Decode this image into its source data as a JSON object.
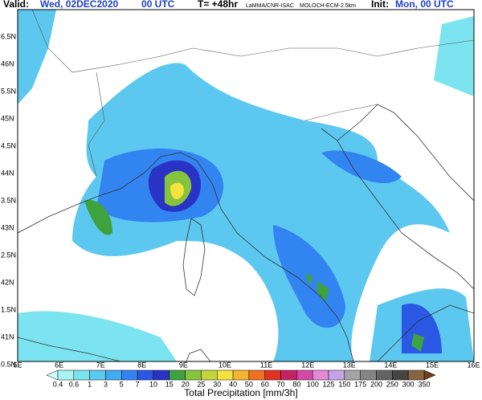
{
  "header": {
    "valid_label": "Valid:",
    "valid_day": "Wed, 02DEC2020",
    "valid_hour": "00 UTC",
    "lead": "T= +48hr",
    "source": "LaMMA/CNR-ISAC",
    "model": "MOLOCH-ECM-2.5km",
    "init_label": "Init:",
    "init_value": "Mon, 00 UTC"
  },
  "map": {
    "lat_labels": [
      "6.5N",
      "46N",
      "5.5N",
      "45N",
      "4.5N",
      "44N",
      "3.5N",
      "43N",
      "2.5N",
      "42N",
      "1.5N",
      "41N",
      "0.5N"
    ],
    "lon_labels": [
      "5E",
      "6E",
      "7E",
      "8E",
      "9E",
      "10E",
      "11E",
      "12E",
      "13E",
      "14E",
      "15E",
      "16E"
    ]
  },
  "colorbar": {
    "levels": [
      0.4,
      0.6,
      1,
      3,
      5,
      7,
      10,
      15,
      20,
      25,
      30,
      40,
      50,
      60,
      70,
      80,
      100,
      125,
      150,
      175,
      200,
      250,
      300,
      350
    ],
    "colors": [
      "#a8f4f4",
      "#7ce4f0",
      "#5ccaf0",
      "#42aaf0",
      "#3284f0",
      "#2a58e4",
      "#2a34c4",
      "#3ea23e",
      "#86c43e",
      "#c4d43e",
      "#f4e23e",
      "#f4b432",
      "#f07022",
      "#e03222",
      "#c42262",
      "#d448a8",
      "#e488d8",
      "#c4a4e4",
      "#a4a4a4",
      "#848484",
      "#646464",
      "#444444",
      "#866444"
    ],
    "under_color": "#d0ffff",
    "over_color": "#6e4020",
    "title": "Total Precipitation [mm/3h]"
  }
}
